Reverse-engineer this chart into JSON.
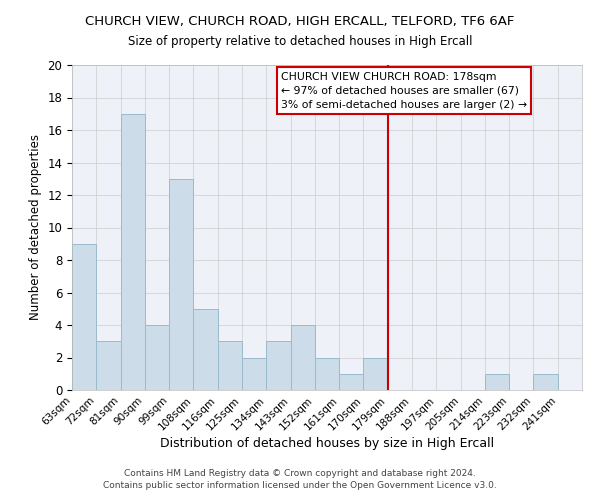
{
  "title": "CHURCH VIEW, CHURCH ROAD, HIGH ERCALL, TELFORD, TF6 6AF",
  "subtitle": "Size of property relative to detached houses in High Ercall",
  "xlabel": "Distribution of detached houses by size in High Ercall",
  "ylabel": "Number of detached properties",
  "footer_line1": "Contains HM Land Registry data © Crown copyright and database right 2024.",
  "footer_line2": "Contains public sector information licensed under the Open Government Licence v3.0.",
  "bin_labels": [
    "63sqm",
    "72sqm",
    "81sqm",
    "90sqm",
    "99sqm",
    "108sqm",
    "116sqm",
    "125sqm",
    "134sqm",
    "143sqm",
    "152sqm",
    "161sqm",
    "170sqm",
    "179sqm",
    "188sqm",
    "197sqm",
    "205sqm",
    "214sqm",
    "223sqm",
    "232sqm",
    "241sqm"
  ],
  "bar_values": [
    9,
    3,
    17,
    4,
    13,
    5,
    3,
    2,
    3,
    4,
    2,
    1,
    2,
    0,
    0,
    0,
    0,
    1,
    0,
    1,
    0
  ],
  "bar_color": "#ccdce8",
  "bar_edge_color": "#99bbcc",
  "grid_color": "#cccccc",
  "background_color": "#ffffff",
  "plot_bg_color": "#eef2f8",
  "vline_x_index": 13,
  "vline_color": "#cc0000",
  "annotation_line1": "CHURCH VIEW CHURCH ROAD: 178sqm",
  "annotation_line2": "← 97% of detached houses are smaller (67)",
  "annotation_line3": "3% of semi-detached houses are larger (2) →",
  "ylim": [
    0,
    20
  ],
  "yticks": [
    0,
    2,
    4,
    6,
    8,
    10,
    12,
    14,
    16,
    18,
    20
  ]
}
